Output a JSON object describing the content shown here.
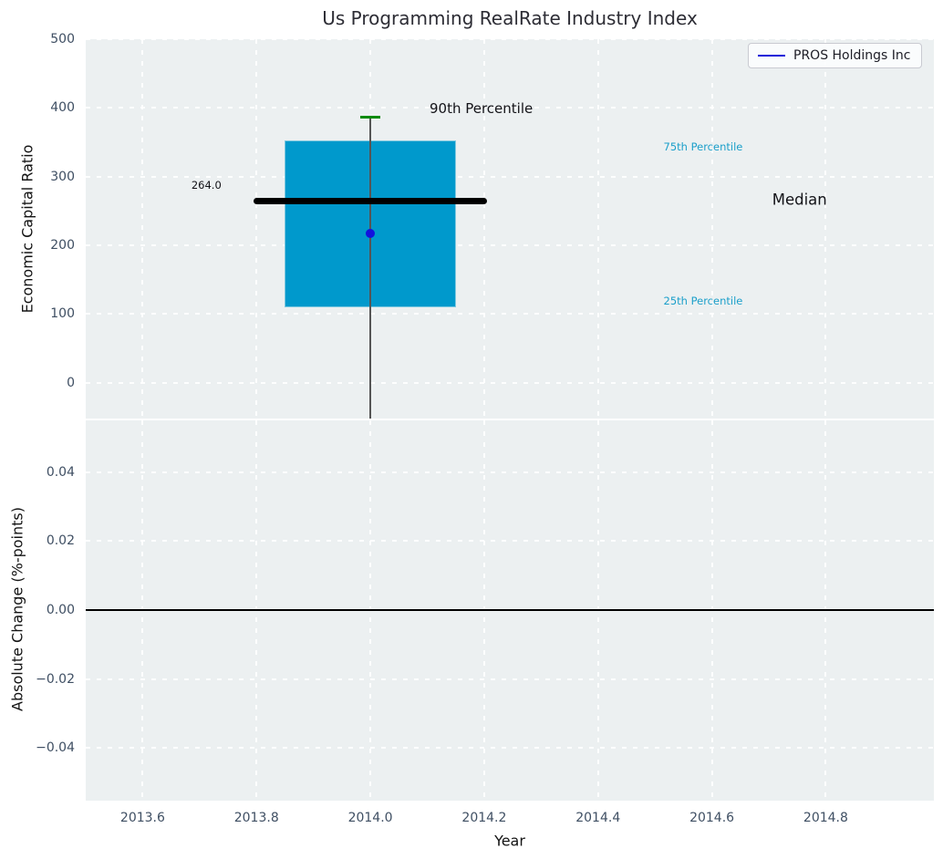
{
  "colors": {
    "plot_bg": "#ecf0f1",
    "grid": "#ffffff",
    "box_fill": "#0099cc",
    "box_edge": "#7fc9e0",
    "median_line": "#000000",
    "cap_green": "#0a8a0a",
    "whisker_gray": "#555555",
    "point_blue": "#1212dd",
    "legend_line_blue": "#1414d9",
    "tick_label": "#3f4f63",
    "percentile_label_cyan": "#1b9fca",
    "annotation_black": "#131318",
    "zero_line": "#000000"
  },
  "chart_data": [
    {
      "type": "boxplot",
      "panel": "top",
      "title": "Us Programming RealRate Industry Index",
      "ylabel": "Economic Capital Ratio",
      "xlim": [
        2013.5,
        2014.99
      ],
      "ylim": [
        -52,
        500
      ],
      "yticks": [
        0,
        100,
        200,
        300,
        400,
        500
      ],
      "ytick_labels": [
        "0",
        "100",
        "200",
        "300",
        "400",
        "500"
      ],
      "xticks": [
        2013.6,
        2013.8,
        2014.0,
        2014.2,
        2014.4,
        2014.6,
        2014.8
      ],
      "grid": true,
      "legend": {
        "position": "upper right",
        "entries": [
          {
            "label": "PROS Holdings Inc",
            "marker": "line",
            "color": "#1414d9"
          }
        ]
      },
      "box": {
        "x": 2014.0,
        "box_halfwidth": 0.15,
        "q1": 110,
        "median": 264.0,
        "q3": 353,
        "p90": 387,
        "whisker_low_clipped_below_axis": true,
        "median_line_halfwidth": 0.205,
        "cap_halfwidth": 0.018
      },
      "series": [
        {
          "name": "PROS Holdings Inc",
          "x": [
            2014.0
          ],
          "y": [
            217
          ],
          "marker": "circle"
        }
      ],
      "annotations": [
        {
          "text": "264.0",
          "x": 2013.712,
          "y": 288,
          "size": 11.5,
          "color": "#131318",
          "anchor": "middle"
        },
        {
          "text": "90th Percentile",
          "x": 2014.104,
          "y": 399,
          "size": 15,
          "color": "#131318",
          "anchor": "start"
        },
        {
          "text": "75th Percentile",
          "x": 2014.515,
          "y": 344,
          "size": 11.5,
          "color": "#1b9fca",
          "anchor": "start"
        },
        {
          "text": "Median",
          "x": 2014.706,
          "y": 267,
          "size": 16.5,
          "color": "#131318",
          "anchor": "start"
        },
        {
          "text": "25th Percentile",
          "x": 2014.515,
          "y": 119,
          "size": 11.5,
          "color": "#1b9fca",
          "anchor": "start"
        }
      ]
    },
    {
      "type": "line",
      "panel": "bottom",
      "ylabel": "Absolute Change (%-points)",
      "xlabel": "Year",
      "xlim": [
        2013.5,
        2014.99
      ],
      "ylim": [
        -0.0553,
        0.055
      ],
      "yticks": [
        -0.04,
        -0.02,
        0.0,
        0.02,
        0.04
      ],
      "ytick_labels": [
        "−0.04",
        "−0.02",
        "0.00",
        "0.02",
        "0.04"
      ],
      "xticks": [
        2013.6,
        2013.8,
        2014.0,
        2014.2,
        2014.4,
        2014.6,
        2014.8
      ],
      "xtick_labels": [
        "2013.6",
        "2013.8",
        "2014.0",
        "2014.2",
        "2014.4",
        "2014.6",
        "2014.8"
      ],
      "zero_line_y": 0.0,
      "grid": true
    }
  ]
}
